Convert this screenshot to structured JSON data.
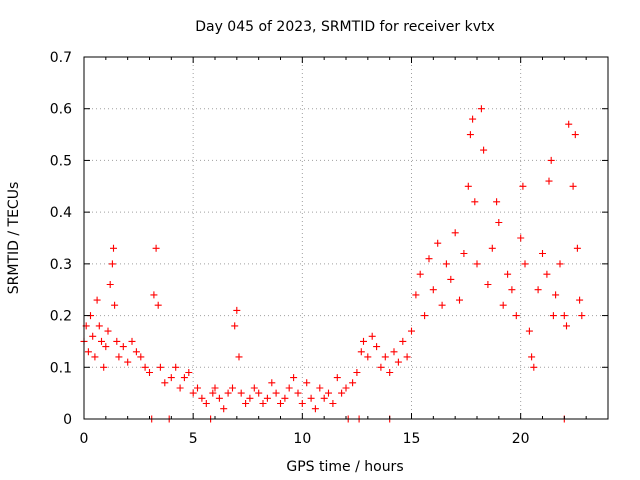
{
  "chart_data": {
    "type": "scatter",
    "title": "Day 045 of 2023, SRMTID for receiver kvtx",
    "xlabel": "GPS time / hours",
    "ylabel": "SRMTID / TECUs",
    "xlim": [
      0,
      24
    ],
    "ylim": [
      0,
      0.7
    ],
    "x_ticks": [
      0,
      5,
      10,
      15,
      20
    ],
    "x_tick_labels": [
      "0",
      "5",
      "10",
      "15",
      "20"
    ],
    "y_ticks": [
      0,
      0.1,
      0.2,
      0.3,
      0.4,
      0.5,
      0.6,
      0.7
    ],
    "y_tick_labels": [
      "0",
      "0.1",
      "0.2",
      "0.3",
      "0.4",
      "0.5",
      "0.6",
      "0.7"
    ],
    "grid": true,
    "marker": "+",
    "colors": {
      "series": "#ff0000",
      "grid": "#a0a0a0",
      "axis": "#000000"
    },
    "series": [
      {
        "name": "SRMTID",
        "points": [
          [
            0.0,
            0.15
          ],
          [
            0.1,
            0.18
          ],
          [
            0.2,
            0.13
          ],
          [
            0.3,
            0.2
          ],
          [
            0.4,
            0.16
          ],
          [
            0.5,
            0.12
          ],
          [
            0.6,
            0.23
          ],
          [
            0.7,
            0.18
          ],
          [
            0.8,
            0.15
          ],
          [
            0.9,
            0.1
          ],
          [
            1.0,
            0.14
          ],
          [
            1.1,
            0.17
          ],
          [
            1.2,
            0.26
          ],
          [
            1.3,
            0.3
          ],
          [
            1.35,
            0.33
          ],
          [
            1.4,
            0.22
          ],
          [
            1.5,
            0.15
          ],
          [
            1.6,
            0.12
          ],
          [
            1.8,
            0.14
          ],
          [
            2.0,
            0.11
          ],
          [
            2.2,
            0.15
          ],
          [
            2.4,
            0.13
          ],
          [
            2.6,
            0.12
          ],
          [
            2.8,
            0.1
          ],
          [
            3.0,
            0.09
          ],
          [
            3.1,
            0.0
          ],
          [
            3.2,
            0.24
          ],
          [
            3.3,
            0.33
          ],
          [
            3.4,
            0.22
          ],
          [
            3.5,
            0.1
          ],
          [
            3.7,
            0.07
          ],
          [
            3.9,
            0.0
          ],
          [
            4.0,
            0.08
          ],
          [
            4.2,
            0.1
          ],
          [
            4.4,
            0.06
          ],
          [
            4.6,
            0.08
          ],
          [
            4.8,
            0.09
          ],
          [
            5.0,
            0.05
          ],
          [
            5.2,
            0.06
          ],
          [
            5.4,
            0.04
          ],
          [
            5.6,
            0.03
          ],
          [
            5.8,
            0.0
          ],
          [
            5.9,
            0.05
          ],
          [
            6.0,
            0.06
          ],
          [
            6.2,
            0.04
          ],
          [
            6.4,
            0.02
          ],
          [
            6.6,
            0.05
          ],
          [
            6.8,
            0.06
          ],
          [
            6.9,
            0.18
          ],
          [
            7.0,
            0.21
          ],
          [
            7.1,
            0.12
          ],
          [
            7.2,
            0.05
          ],
          [
            7.4,
            0.03
          ],
          [
            7.6,
            0.04
          ],
          [
            7.8,
            0.06
          ],
          [
            8.0,
            0.05
          ],
          [
            8.2,
            0.03
          ],
          [
            8.4,
            0.04
          ],
          [
            8.6,
            0.07
          ],
          [
            8.8,
            0.05
          ],
          [
            9.0,
            0.03
          ],
          [
            9.2,
            0.04
          ],
          [
            9.4,
            0.06
          ],
          [
            9.6,
            0.08
          ],
          [
            9.8,
            0.05
          ],
          [
            10.0,
            0.03
          ],
          [
            10.2,
            0.07
          ],
          [
            10.4,
            0.04
          ],
          [
            10.6,
            0.02
          ],
          [
            10.8,
            0.06
          ],
          [
            11.0,
            0.04
          ],
          [
            11.2,
            0.05
          ],
          [
            11.4,
            0.03
          ],
          [
            11.6,
            0.08
          ],
          [
            11.8,
            0.05
          ],
          [
            12.0,
            0.06
          ],
          [
            12.1,
            0.0
          ],
          [
            12.3,
            0.07
          ],
          [
            12.5,
            0.09
          ],
          [
            12.6,
            0.0
          ],
          [
            12.7,
            0.13
          ],
          [
            12.8,
            0.15
          ],
          [
            13.0,
            0.12
          ],
          [
            13.2,
            0.16
          ],
          [
            13.4,
            0.14
          ],
          [
            13.6,
            0.1
          ],
          [
            13.8,
            0.12
          ],
          [
            14.0,
            0.09
          ],
          [
            14.0,
            0.0
          ],
          [
            14.2,
            0.13
          ],
          [
            14.4,
            0.11
          ],
          [
            14.6,
            0.15
          ],
          [
            14.8,
            0.12
          ],
          [
            15.0,
            0.17
          ],
          [
            15.2,
            0.24
          ],
          [
            15.4,
            0.28
          ],
          [
            15.6,
            0.2
          ],
          [
            15.8,
            0.31
          ],
          [
            16.0,
            0.25
          ],
          [
            16.2,
            0.34
          ],
          [
            16.4,
            0.22
          ],
          [
            16.6,
            0.3
          ],
          [
            16.8,
            0.27
          ],
          [
            17.0,
            0.36
          ],
          [
            17.2,
            0.23
          ],
          [
            17.4,
            0.32
          ],
          [
            17.6,
            0.45
          ],
          [
            17.7,
            0.55
          ],
          [
            17.8,
            0.58
          ],
          [
            17.9,
            0.42
          ],
          [
            18.0,
            0.3
          ],
          [
            18.2,
            0.6
          ],
          [
            18.3,
            0.52
          ],
          [
            18.5,
            0.26
          ],
          [
            18.7,
            0.33
          ],
          [
            18.9,
            0.42
          ],
          [
            19.0,
            0.38
          ],
          [
            19.2,
            0.22
          ],
          [
            19.4,
            0.28
          ],
          [
            19.6,
            0.25
          ],
          [
            19.8,
            0.2
          ],
          [
            20.0,
            0.35
          ],
          [
            20.1,
            0.45
          ],
          [
            20.2,
            0.3
          ],
          [
            20.4,
            0.17
          ],
          [
            20.5,
            0.12
          ],
          [
            20.6,
            0.1
          ],
          [
            20.8,
            0.25
          ],
          [
            21.0,
            0.32
          ],
          [
            21.2,
            0.28
          ],
          [
            21.3,
            0.46
          ],
          [
            21.4,
            0.5
          ],
          [
            21.5,
            0.2
          ],
          [
            21.6,
            0.24
          ],
          [
            21.8,
            0.3
          ],
          [
            22.0,
            0.2
          ],
          [
            22.0,
            0.0
          ],
          [
            22.1,
            0.18
          ],
          [
            22.2,
            0.57
          ],
          [
            22.4,
            0.45
          ],
          [
            22.5,
            0.55
          ],
          [
            22.6,
            0.33
          ],
          [
            22.7,
            0.23
          ],
          [
            22.8,
            0.2
          ]
        ]
      }
    ]
  }
}
